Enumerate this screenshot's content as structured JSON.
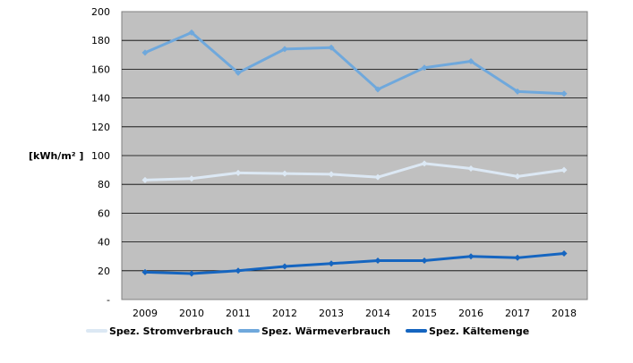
{
  "chart_data": {
    "type": "line",
    "ylabel": "[kWh/m² ]",
    "x": [
      "2009",
      "2010",
      "2011",
      "2012",
      "2013",
      "2014",
      "2015",
      "2016",
      "2017",
      "2018"
    ],
    "ylim": [
      0,
      200
    ],
    "yticks": [
      "-",
      "20",
      "40",
      "60",
      "80",
      "100",
      "120",
      "140",
      "160",
      "180",
      "200"
    ],
    "grid": true,
    "legend": "bottom",
    "series": [
      {
        "name": "Spez. Stromverbrauch",
        "color": "#dce8f4",
        "values": [
          83,
          84,
          88,
          87.5,
          87,
          85,
          94.5,
          91,
          85.5,
          90
        ]
      },
      {
        "name": "Spez. Wärmeverbrauch",
        "color": "#6fa8dc",
        "values": [
          171.5,
          185.5,
          157.5,
          174,
          175,
          146,
          161,
          165.5,
          144.5,
          143
        ]
      },
      {
        "name": "Spez. Kältemenge",
        "color": "#1565c0",
        "values": [
          19,
          18,
          20,
          23,
          25,
          27,
          27,
          30,
          29,
          32
        ]
      }
    ]
  }
}
